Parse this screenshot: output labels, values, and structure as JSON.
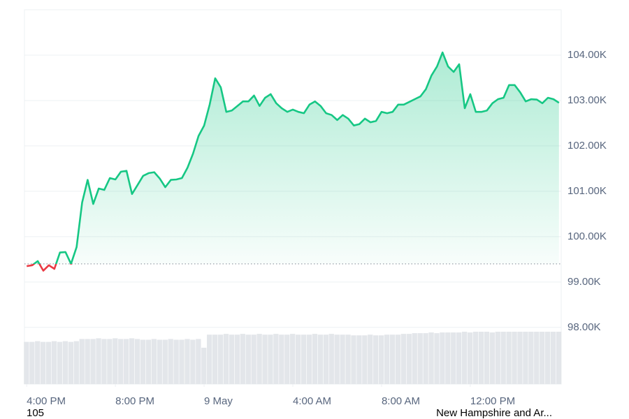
{
  "chart_data": {
    "type": "line",
    "x": [
      0,
      0.25,
      0.5,
      0.75,
      1,
      1.25,
      1.5,
      1.75,
      2,
      2.25,
      2.5,
      2.75,
      3,
      3.25,
      3.5,
      3.75,
      4,
      4.25,
      4.5,
      4.75,
      5,
      5.25,
      5.5,
      5.75,
      6,
      6.25,
      6.5,
      6.75,
      7,
      7.25,
      7.5,
      7.75,
      8,
      8.25,
      8.5,
      8.75,
      9,
      9.25,
      9.5,
      9.75,
      10,
      10.25,
      10.5,
      10.75,
      11,
      11.25,
      11.5,
      11.75,
      12,
      12.25,
      12.5,
      12.75,
      13,
      13.25,
      13.5,
      13.75,
      14,
      14.25,
      14.5,
      14.75,
      15,
      15.25,
      15.5,
      15.75,
      16,
      16.25,
      16.5,
      16.75,
      17,
      17.25,
      17.5,
      17.75,
      18,
      18.25,
      18.5,
      18.75,
      19,
      19.25,
      19.5,
      19.75,
      20,
      20.25,
      20.5,
      20.75,
      21,
      21.25,
      21.5,
      21.75,
      22,
      22.25,
      22.5,
      22.75,
      23,
      23.25,
      23.5,
      23.75,
      24
    ],
    "values": [
      99350,
      99370,
      99460,
      99250,
      99370,
      99290,
      99650,
      99660,
      99400,
      99770,
      100750,
      101250,
      100720,
      101060,
      101030,
      101290,
      101260,
      101430,
      101450,
      100940,
      101140,
      101340,
      101400,
      101420,
      101280,
      101090,
      101250,
      101260,
      101290,
      101520,
      101830,
      102220,
      102450,
      102910,
      103490,
      103290,
      102750,
      102780,
      102880,
      102980,
      102980,
      103110,
      102880,
      103060,
      103140,
      102940,
      102830,
      102750,
      102800,
      102750,
      102720,
      102910,
      102980,
      102880,
      102720,
      102680,
      102570,
      102680,
      102600,
      102450,
      102480,
      102600,
      102520,
      102550,
      102750,
      102720,
      102750,
      102910,
      102910,
      102970,
      103030,
      103090,
      103250,
      103550,
      103750,
      104060,
      103750,
      103630,
      103800,
      102830,
      103140,
      102750,
      102750,
      102780,
      102940,
      103030,
      103060,
      103340,
      103340,
      103180,
      102980,
      103030,
      103020,
      102940,
      103060,
      103030,
      102950
    ],
    "volume": [
      58,
      58,
      59,
      58,
      58,
      59,
      58,
      59,
      58,
      59,
      62,
      62,
      62,
      63,
      62,
      62,
      63,
      62,
      62,
      63,
      62,
      61,
      61,
      62,
      61,
      61,
      62,
      61,
      61,
      62,
      61,
      62,
      50,
      68,
      68,
      68,
      69,
      68,
      68,
      69,
      68,
      68,
      69,
      68,
      68,
      69,
      68,
      68,
      69,
      68,
      68,
      68,
      69,
      68,
      68,
      69,
      68,
      68,
      68,
      67,
      67,
      67,
      68,
      67,
      67,
      68,
      68,
      68,
      69,
      69,
      70,
      70,
      70,
      71,
      70,
      71,
      71,
      71,
      71,
      72,
      71,
      72,
      72,
      72,
      71,
      72,
      72,
      72,
      72,
      72,
      72,
      72,
      72,
      72,
      72,
      72,
      72
    ],
    "baseline": 99400,
    "color_up": "#16c784",
    "color_down": "#ea3943",
    "volume_color": "#e3e6ea",
    "xlim": [
      -0.1,
      24.1
    ],
    "xticks": [
      {
        "value": 0,
        "label": "4:00 PM"
      },
      {
        "value": 4,
        "label": "8:00 PM"
      },
      {
        "value": 8,
        "label": "9 May"
      },
      {
        "value": 12,
        "label": "4:00 AM"
      },
      {
        "value": 16,
        "label": "8:00 AM"
      },
      {
        "value": 20,
        "label": "12:00 PM"
      }
    ],
    "ylim": [
      96750,
      105000
    ],
    "yticks": [
      {
        "value": 98000,
        "label": "98.00K"
      },
      {
        "value": 99000,
        "label": "99.00K"
      },
      {
        "value": 100000,
        "label": "100.00K"
      },
      {
        "value": 101000,
        "label": "101.00K"
      },
      {
        "value": 102000,
        "label": "102.00K"
      },
      {
        "value": 103000,
        "label": "103.00K"
      },
      {
        "value": 104000,
        "label": "104.00K"
      }
    ],
    "grid": true,
    "footer": {
      "left": "105",
      "right": "New Hampshire and Ar..."
    }
  }
}
